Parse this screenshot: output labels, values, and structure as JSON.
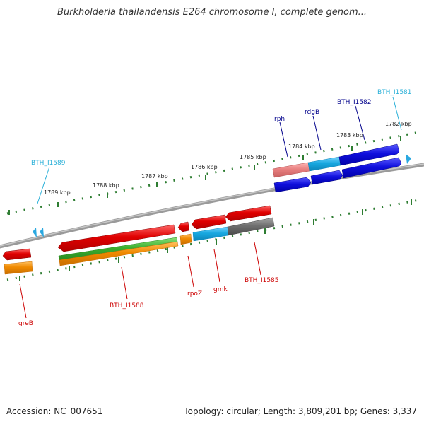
{
  "title": "Burkholderia thailandensis E264 chromosome I, complete genom...",
  "footer": {
    "accession": "Accession: NC_007651",
    "info": "Topology: circular; Length: 3,809,201 bp; Genes: 3,337"
  },
  "ruler_labels": [
    "1782 kbp",
    "1783 kbp",
    "1784 kbp",
    "1785 kbp",
    "1786 kbp",
    "1787 kbp",
    "1788 kbp",
    "1789 kbp"
  ],
  "gene_labels": {
    "BTH_I1581": "BTH_I1581",
    "BTH_I1582": "BTH_I1582",
    "rdgB": "rdgB",
    "rph": "rph",
    "BTH_I1589": "BTH_I1589",
    "BTH_I1585": "BTH_I1585",
    "gmk": "gmk",
    "rpoZ": "rpoZ",
    "BTH_I1588": "BTH_I1588",
    "greB": "greB"
  },
  "colors": {
    "forward_label": "#00008b",
    "forward_cyan_label": "#2ab0d8",
    "reverse_label": "#cc0000",
    "backbone": "#808080",
    "tick": "#2e7d32",
    "red": "#e00000",
    "blue": "#1010dd",
    "cyan": "#18a8e0",
    "orange": "#f08a00",
    "green": "#3cb030",
    "gray": "#707070",
    "salmon": "#e88080"
  }
}
